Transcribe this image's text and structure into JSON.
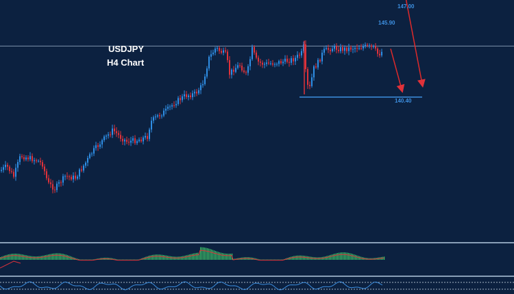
{
  "chart_data": {
    "type": "candlestick",
    "title": "USDJPY",
    "subtitle": "H4 Chart",
    "levels": [
      {
        "label": "147.00",
        "value": 147.0
      },
      {
        "label": "145.90",
        "value": 145.9
      },
      {
        "label": "140.40",
        "value": 140.4
      }
    ],
    "reference_line": 144.2,
    "arrows": [
      {
        "from": 144.0,
        "to": 141.0,
        "color": "#e02a2a"
      },
      {
        "from": 147.8,
        "to": 141.4,
        "color": "#e02a2a"
      }
    ],
    "colors": {
      "background": "#0c2140",
      "bull": "#2f8fe6",
      "bear": "#e0323a",
      "level_line": "#3d8fe0",
      "macd_hist": "#3fc46a",
      "macd_signal": "#e0323a"
    },
    "panels": [
      "price",
      "macd",
      "oscillator"
    ]
  }
}
